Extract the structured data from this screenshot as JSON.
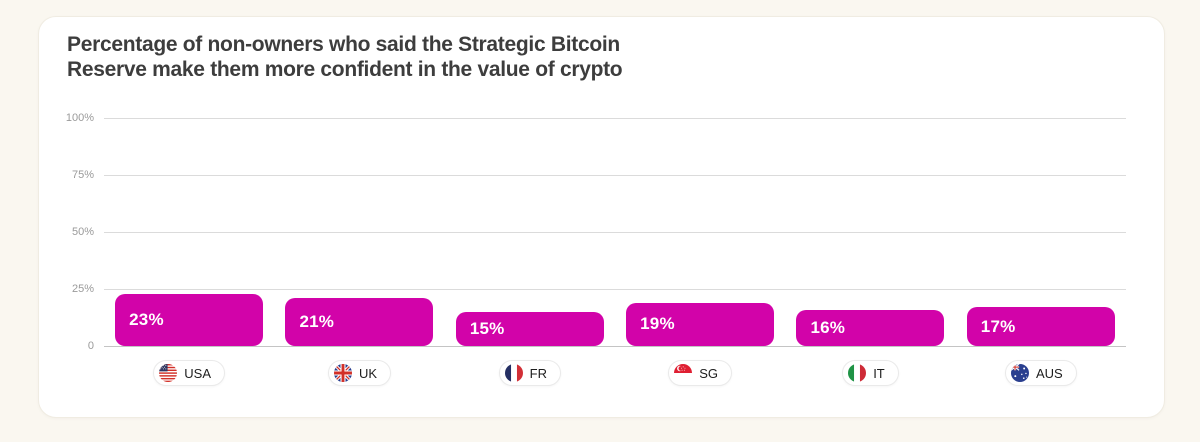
{
  "page": {
    "background_color": "#FAF7F0"
  },
  "card": {
    "background_color": "#FFFFFF",
    "border_color": "#F0ECE2",
    "title_lines": [
      "Percentage of non-owners who said the Strategic Bitcoin",
      "Reserve make them more confident in the value of crypto"
    ]
  },
  "chart_data": {
    "type": "bar",
    "title": "Percentage of non-owners who said the Strategic Bitcoin Reserve make them more confident in the value of crypto",
    "categories": [
      "USA",
      "UK",
      "FR",
      "SG",
      "IT",
      "AUS"
    ],
    "values": [
      23,
      21,
      15,
      19,
      16,
      17
    ],
    "value_labels": [
      "23%",
      "21%",
      "15%",
      "19%",
      "16%",
      "17%"
    ],
    "flag_icons": [
      "flag-usa-icon",
      "flag-uk-icon",
      "flag-fr-icon",
      "flag-sg-icon",
      "flag-it-icon",
      "flag-aus-icon"
    ],
    "xlabel": "",
    "ylabel": "",
    "ylim": [
      0,
      100
    ],
    "yticks": [
      {
        "value": 0,
        "label": "0"
      },
      {
        "value": 25,
        "label": "25%"
      },
      {
        "value": 50,
        "label": "50%"
      },
      {
        "value": 75,
        "label": "75%"
      },
      {
        "value": 100,
        "label": "100%"
      }
    ],
    "grid": true,
    "legend_position": "none",
    "bar_color": "#D203A9",
    "bar_label_color": "#FFFFFF",
    "gridline_color": "#DBDBDB",
    "baseline_color": "#C4C4C4",
    "tick_label_color": "#9A9A9A",
    "title_color": "#3D3D3D"
  }
}
